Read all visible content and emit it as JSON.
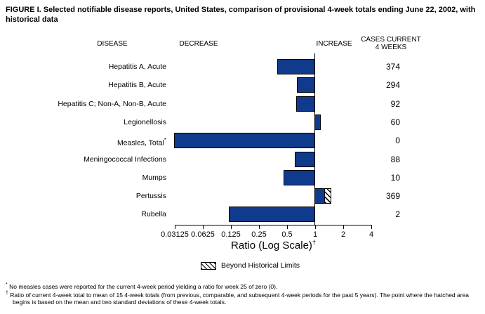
{
  "title": "FIGURE I. Selected notifiable disease reports, United States, comparison of provisional 4-week totals ending June 22, 2002, with historical data",
  "headers": {
    "disease": "DISEASE",
    "decrease": "DECREASE",
    "increase": "INCREASE",
    "cases_line1": "CASES CURRENT",
    "cases_line2": "4 WEEKS"
  },
  "chart_data": {
    "type": "bar",
    "orientation": "horizontal",
    "x_scale": "log2",
    "x_axis_label": "Ratio (Log Scale)",
    "x_axis_label_footnote_marker": "†",
    "x_ticks": [
      "0.03125",
      "0.0625",
      "0.125",
      "0.25",
      "0.5",
      "1",
      "2",
      "4"
    ],
    "x_range": [
      0.03125,
      4
    ],
    "baseline_ratio": 1,
    "bar_color": "#103a8c",
    "rows": [
      {
        "disease": "Hepatitis A, Acute",
        "ratio": 0.4,
        "cases": "374"
      },
      {
        "disease": "Hepatitis B, Acute",
        "ratio": 0.65,
        "cases": "294"
      },
      {
        "disease": "Hepatitis C; Non-A, Non-B, Acute",
        "ratio": 0.64,
        "cases": "92"
      },
      {
        "disease": "Legionellosis",
        "ratio": 1.15,
        "cases": "60"
      },
      {
        "disease": "Measles, Total",
        "footnote_marker": "*",
        "ratio": 0,
        "cases": "0"
      },
      {
        "disease": "Meningococcal Infections",
        "ratio": 0.62,
        "cases": "88"
      },
      {
        "disease": "Mumps",
        "ratio": 0.47,
        "cases": "10"
      },
      {
        "disease": "Pertussis",
        "ratio": 1.5,
        "beyond_limits_from": 1.27,
        "cases": "369"
      },
      {
        "disease": "Rubella",
        "ratio": 0.12,
        "cases": "2"
      }
    ],
    "legend": {
      "swatch": "hatched",
      "label": "Beyond Historical Limits"
    }
  },
  "footnotes": [
    {
      "marker": "*",
      "text": "No measles cases were reported for the current 4-week period yielding a ratio for week 25 of zero (0)."
    },
    {
      "marker": "†",
      "text": "Ratio of current 4-week total to mean of 15 4-week totals (from previous, comparable, and subsequent 4-week periods for the past 5 years). The point where the hatched area begins is based on the mean and two standard deviations of these 4-week totals."
    }
  ]
}
